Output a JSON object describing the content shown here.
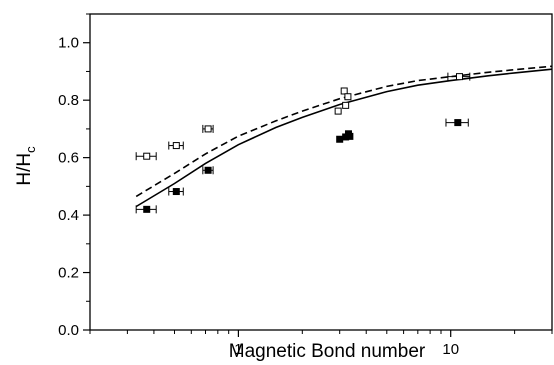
{
  "chart_data": {
    "type": "scatter",
    "xscale": "log",
    "xlim": [
      0.2,
      30
    ],
    "ylim": [
      0.0,
      1.1
    ],
    "xlabel": "Magnetic Bond number",
    "ylabel": "H/H",
    "ylabel_sub": "c",
    "grid": false,
    "x_ticks": [
      {
        "value": 1,
        "label": "1"
      },
      {
        "value": 10,
        "label": "10"
      }
    ],
    "y_ticks": [
      {
        "value": 0.0,
        "label": "0.0"
      },
      {
        "value": 0.2,
        "label": "0.2"
      },
      {
        "value": 0.4,
        "label": "0.4"
      },
      {
        "value": 0.6,
        "label": "0.6"
      },
      {
        "value": 0.8,
        "label": "0.8"
      },
      {
        "value": 1.0,
        "label": "1.0"
      }
    ],
    "series": [
      {
        "marker": "open-square",
        "points": [
          {
            "x": 0.37,
            "y": 0.605,
            "xerr": 0.04
          },
          {
            "x": 0.51,
            "y": 0.642,
            "xerr": 0.04
          },
          {
            "x": 0.72,
            "y": 0.7,
            "xerr": 0.04
          },
          {
            "x": 2.95,
            "y": 0.762,
            "xerr": 0.0
          },
          {
            "x": 3.15,
            "y": 0.832,
            "xerr": 0.0
          },
          {
            "x": 3.2,
            "y": 0.782,
            "xerr": 0.0
          },
          {
            "x": 3.28,
            "y": 0.812,
            "xerr": 0.0
          },
          {
            "x": 11.0,
            "y": 0.882,
            "xerr": 1.3
          }
        ]
      },
      {
        "marker": "filled-square",
        "points": [
          {
            "x": 0.37,
            "y": 0.42,
            "xerr": 0.04
          },
          {
            "x": 0.51,
            "y": 0.482,
            "xerr": 0.04
          },
          {
            "x": 0.72,
            "y": 0.556,
            "xerr": 0.04
          },
          {
            "x": 3.0,
            "y": 0.664,
            "xerr": 0.0
          },
          {
            "x": 3.2,
            "y": 0.672,
            "xerr": 0.0
          },
          {
            "x": 3.3,
            "y": 0.683,
            "xerr": 0.0
          },
          {
            "x": 3.35,
            "y": 0.674,
            "xerr": 0.0
          },
          {
            "x": 10.8,
            "y": 0.722,
            "xerr": 1.3
          }
        ]
      },
      {
        "style": "dashed-line",
        "points": [
          {
            "x": 0.33,
            "y": 0.465
          },
          {
            "x": 0.5,
            "y": 0.545
          },
          {
            "x": 0.7,
            "y": 0.613
          },
          {
            "x": 1.0,
            "y": 0.675
          },
          {
            "x": 1.5,
            "y": 0.728
          },
          {
            "x": 2.0,
            "y": 0.762
          },
          {
            "x": 3.0,
            "y": 0.805
          },
          {
            "x": 5.0,
            "y": 0.848
          },
          {
            "x": 7.0,
            "y": 0.868
          },
          {
            "x": 10.0,
            "y": 0.882
          },
          {
            "x": 15.0,
            "y": 0.897
          },
          {
            "x": 20.0,
            "y": 0.906
          },
          {
            "x": 30.0,
            "y": 0.918
          }
        ]
      },
      {
        "style": "solid-line",
        "points": [
          {
            "x": 0.33,
            "y": 0.43
          },
          {
            "x": 0.5,
            "y": 0.51
          },
          {
            "x": 0.7,
            "y": 0.58
          },
          {
            "x": 1.0,
            "y": 0.645
          },
          {
            "x": 1.5,
            "y": 0.705
          },
          {
            "x": 2.0,
            "y": 0.74
          },
          {
            "x": 3.0,
            "y": 0.785
          },
          {
            "x": 5.0,
            "y": 0.83
          },
          {
            "x": 7.0,
            "y": 0.852
          },
          {
            "x": 10.0,
            "y": 0.868
          },
          {
            "x": 15.0,
            "y": 0.885
          },
          {
            "x": 20.0,
            "y": 0.895
          },
          {
            "x": 30.0,
            "y": 0.908
          }
        ]
      }
    ]
  }
}
